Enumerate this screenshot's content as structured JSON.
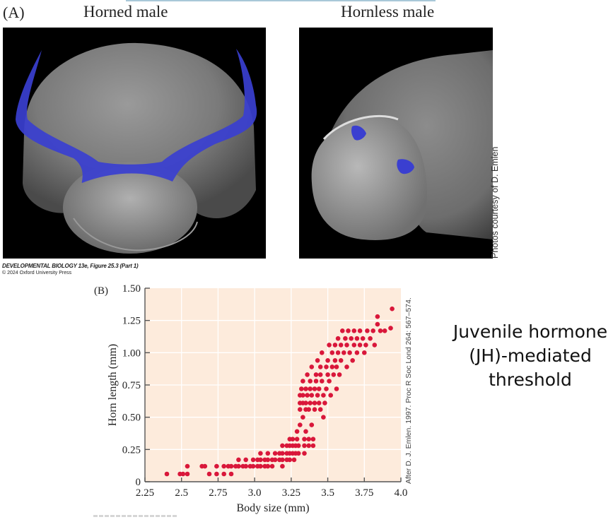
{
  "panel_a": {
    "label": "(A)",
    "left_photo_title": "Horned male",
    "right_photo_title": "Hornless male",
    "photo_credit": "Photos courtesy of D. Emlen",
    "caption_line1": "DEVELOPMENTAL BIOLOGY 13e, Figure 25.3 (Part 1)",
    "caption_line2": "© 2024 Oxford University Press",
    "horn_color": "#3a3fd0"
  },
  "panel_b": {
    "label": "(B)",
    "source_note": "After D. J. Emlen. 1997. Proc R Soc Lond 264: 567–574.",
    "background_color": "#fdebdc",
    "point_color": "#d9173a"
  },
  "side_text": {
    "line1": "Juvenile hormone",
    "line2": "(JH)-mediated",
    "line3": "threshold"
  },
  "chart_data": {
    "type": "scatter",
    "title": "",
    "xlabel": "Body size (mm)",
    "ylabel": "Horn length (mm)",
    "xlim": [
      2.25,
      4.0
    ],
    "ylim": [
      0,
      1.5
    ],
    "xticks": [
      2.25,
      2.5,
      2.75,
      3.0,
      3.25,
      3.5,
      3.75,
      4.0
    ],
    "xtick_labels": [
      "2.25",
      "2.5",
      "2.75",
      "3.0",
      "3.25",
      "3.5",
      "3.75",
      "4.0"
    ],
    "yticks": [
      0,
      0.25,
      0.5,
      0.75,
      1.0,
      1.25,
      1.5
    ],
    "ytick_labels": [
      "0",
      "0.25",
      "0.50",
      "0.75",
      "1.00",
      "1.25",
      "1.50"
    ],
    "grid": true,
    "legend": null,
    "annotation": "After D. J. Emlen. 1997. Proc R Soc Lond 264: 567–574.",
    "points": [
      [
        2.4,
        0.06
      ],
      [
        2.49,
        0.06
      ],
      [
        2.51,
        0.06
      ],
      [
        2.54,
        0.06
      ],
      [
        2.54,
        0.12
      ],
      [
        2.64,
        0.12
      ],
      [
        2.66,
        0.12
      ],
      [
        2.69,
        0.06
      ],
      [
        2.74,
        0.06
      ],
      [
        2.74,
        0.12
      ],
      [
        2.79,
        0.06
      ],
      [
        2.79,
        0.12
      ],
      [
        2.82,
        0.12
      ],
      [
        2.84,
        0.06
      ],
      [
        2.84,
        0.12
      ],
      [
        2.87,
        0.12
      ],
      [
        2.89,
        0.12
      ],
      [
        2.89,
        0.17
      ],
      [
        2.92,
        0.12
      ],
      [
        2.94,
        0.12
      ],
      [
        2.94,
        0.17
      ],
      [
        2.97,
        0.12
      ],
      [
        2.99,
        0.12
      ],
      [
        2.99,
        0.17
      ],
      [
        3.02,
        0.12
      ],
      [
        3.02,
        0.17
      ],
      [
        3.04,
        0.12
      ],
      [
        3.04,
        0.17
      ],
      [
        3.04,
        0.22
      ],
      [
        3.07,
        0.12
      ],
      [
        3.07,
        0.17
      ],
      [
        3.09,
        0.12
      ],
      [
        3.09,
        0.17
      ],
      [
        3.09,
        0.22
      ],
      [
        3.12,
        0.12
      ],
      [
        3.12,
        0.17
      ],
      [
        3.14,
        0.17
      ],
      [
        3.14,
        0.22
      ],
      [
        3.17,
        0.17
      ],
      [
        3.17,
        0.22
      ],
      [
        3.19,
        0.12
      ],
      [
        3.19,
        0.17
      ],
      [
        3.19,
        0.22
      ],
      [
        3.19,
        0.28
      ],
      [
        3.22,
        0.17
      ],
      [
        3.22,
        0.22
      ],
      [
        3.22,
        0.28
      ],
      [
        3.24,
        0.17
      ],
      [
        3.24,
        0.22
      ],
      [
        3.24,
        0.28
      ],
      [
        3.24,
        0.33
      ],
      [
        3.26,
        0.22
      ],
      [
        3.26,
        0.28
      ],
      [
        3.26,
        0.33
      ],
      [
        3.27,
        0.17
      ],
      [
        3.28,
        0.22
      ],
      [
        3.28,
        0.28
      ],
      [
        3.29,
        0.33
      ],
      [
        3.29,
        0.39
      ],
      [
        3.3,
        0.22
      ],
      [
        3.3,
        0.28
      ],
      [
        3.31,
        0.44
      ],
      [
        3.31,
        0.56
      ],
      [
        3.31,
        0.61
      ],
      [
        3.31,
        0.67
      ],
      [
        3.32,
        0.72
      ],
      [
        3.33,
        0.5
      ],
      [
        3.33,
        0.61
      ],
      [
        3.33,
        0.67
      ],
      [
        3.33,
        0.78
      ],
      [
        3.34,
        0.22
      ],
      [
        3.34,
        0.28
      ],
      [
        3.34,
        0.33
      ],
      [
        3.35,
        0.39
      ],
      [
        3.35,
        0.56
      ],
      [
        3.35,
        0.61
      ],
      [
        3.35,
        0.72
      ],
      [
        3.36,
        0.67
      ],
      [
        3.36,
        0.83
      ],
      [
        3.37,
        0.28
      ],
      [
        3.37,
        0.33
      ],
      [
        3.37,
        0.56
      ],
      [
        3.38,
        0.61
      ],
      [
        3.38,
        0.72
      ],
      [
        3.38,
        0.78
      ],
      [
        3.39,
        0.44
      ],
      [
        3.39,
        0.67
      ],
      [
        3.39,
        0.89
      ],
      [
        3.4,
        0.28
      ],
      [
        3.4,
        0.33
      ],
      [
        3.41,
        0.56
      ],
      [
        3.41,
        0.61
      ],
      [
        3.41,
        0.72
      ],
      [
        3.42,
        0.83
      ],
      [
        3.42,
        0.78
      ],
      [
        3.43,
        0.67
      ],
      [
        3.43,
        0.94
      ],
      [
        3.44,
        0.61
      ],
      [
        3.44,
        0.72
      ],
      [
        3.45,
        0.56
      ],
      [
        3.45,
        0.83
      ],
      [
        3.45,
        0.89
      ],
      [
        3.46,
        0.78
      ],
      [
        3.46,
        1.0
      ],
      [
        3.47,
        0.5
      ],
      [
        3.47,
        0.67
      ],
      [
        3.48,
        0.61
      ],
      [
        3.49,
        0.72
      ],
      [
        3.49,
        0.89
      ],
      [
        3.5,
        0.83
      ],
      [
        3.5,
        0.94
      ],
      [
        3.51,
        0.78
      ],
      [
        3.51,
        1.06
      ],
      [
        3.52,
        0.67
      ],
      [
        3.53,
        0.89
      ],
      [
        3.53,
        1.0
      ],
      [
        3.54,
        0.83
      ],
      [
        3.55,
        0.94
      ],
      [
        3.55,
        1.06
      ],
      [
        3.56,
        0.72
      ],
      [
        3.56,
        0.89
      ],
      [
        3.57,
        1.0
      ],
      [
        3.57,
        1.11
      ],
      [
        3.58,
        0.83
      ],
      [
        3.59,
        0.94
      ],
      [
        3.59,
        1.06
      ],
      [
        3.6,
        1.17
      ],
      [
        3.61,
        1.0
      ],
      [
        3.62,
        1.11
      ],
      [
        3.63,
        0.89
      ],
      [
        3.63,
        1.06
      ],
      [
        3.64,
        1.17
      ],
      [
        3.65,
        1.0
      ],
      [
        3.66,
        1.11
      ],
      [
        3.67,
        0.94
      ],
      [
        3.68,
        1.06
      ],
      [
        3.68,
        1.17
      ],
      [
        3.7,
        1.0
      ],
      [
        3.7,
        1.11
      ],
      [
        3.72,
        1.06
      ],
      [
        3.72,
        1.17
      ],
      [
        3.74,
        1.11
      ],
      [
        3.75,
        1.0
      ],
      [
        3.76,
        1.06
      ],
      [
        3.77,
        1.17
      ],
      [
        3.79,
        1.11
      ],
      [
        3.81,
        1.17
      ],
      [
        3.82,
        1.06
      ],
      [
        3.84,
        1.28
      ],
      [
        3.84,
        1.22
      ],
      [
        3.86,
        1.17
      ],
      [
        3.89,
        1.17
      ],
      [
        3.93,
        1.19
      ],
      [
        3.94,
        1.34
      ]
    ]
  }
}
